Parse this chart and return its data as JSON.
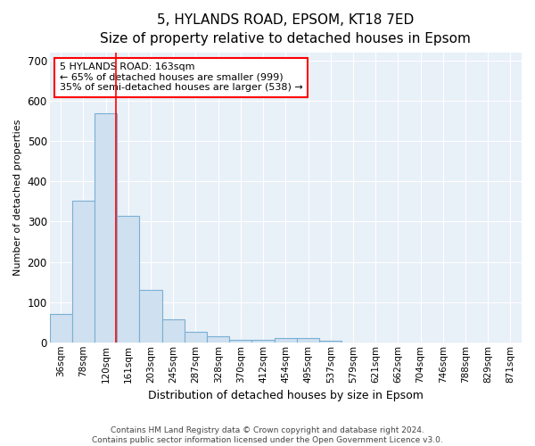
{
  "title1": "5, HYLANDS ROAD, EPSOM, KT18 7ED",
  "title2": "Size of property relative to detached houses in Epsom",
  "xlabel": "Distribution of detached houses by size in Epsom",
  "ylabel": "Number of detached properties",
  "bar_values": [
    70,
    352,
    570,
    314,
    130,
    58,
    27,
    15,
    7,
    7,
    10,
    10,
    5,
    0,
    0,
    0,
    0,
    0,
    0,
    0,
    0
  ],
  "bin_labels": [
    "36sqm",
    "78sqm",
    "120sqm",
    "161sqm",
    "203sqm",
    "245sqm",
    "287sqm",
    "328sqm",
    "370sqm",
    "412sqm",
    "454sqm",
    "495sqm",
    "537sqm",
    "579sqm",
    "621sqm",
    "662sqm",
    "704sqm",
    "746sqm",
    "788sqm",
    "829sqm",
    "871sqm"
  ],
  "bar_color": "#cfe0f0",
  "bar_edge_color": "#7aafd4",
  "fig_bg_color": "#ffffff",
  "ax_bg_color": "#e8f0f8",
  "grid_color": "#ffffff",
  "red_line_x": 2.95,
  "annotation_text": "5 HYLANDS ROAD: 163sqm\n← 65% of detached houses are smaller (999)\n35% of semi-detached houses are larger (538) →",
  "footer": "Contains HM Land Registry data © Crown copyright and database right 2024.\nContains public sector information licensed under the Open Government Licence v3.0.",
  "ylim": [
    0,
    720
  ],
  "yticks": [
    0,
    100,
    200,
    300,
    400,
    500,
    600,
    700
  ],
  "title1_fontsize": 11,
  "title2_fontsize": 10,
  "xlabel_fontsize": 9,
  "ylabel_fontsize": 8,
  "tick_fontsize": 7.5,
  "annotation_fontsize": 8,
  "footer_fontsize": 6.5
}
